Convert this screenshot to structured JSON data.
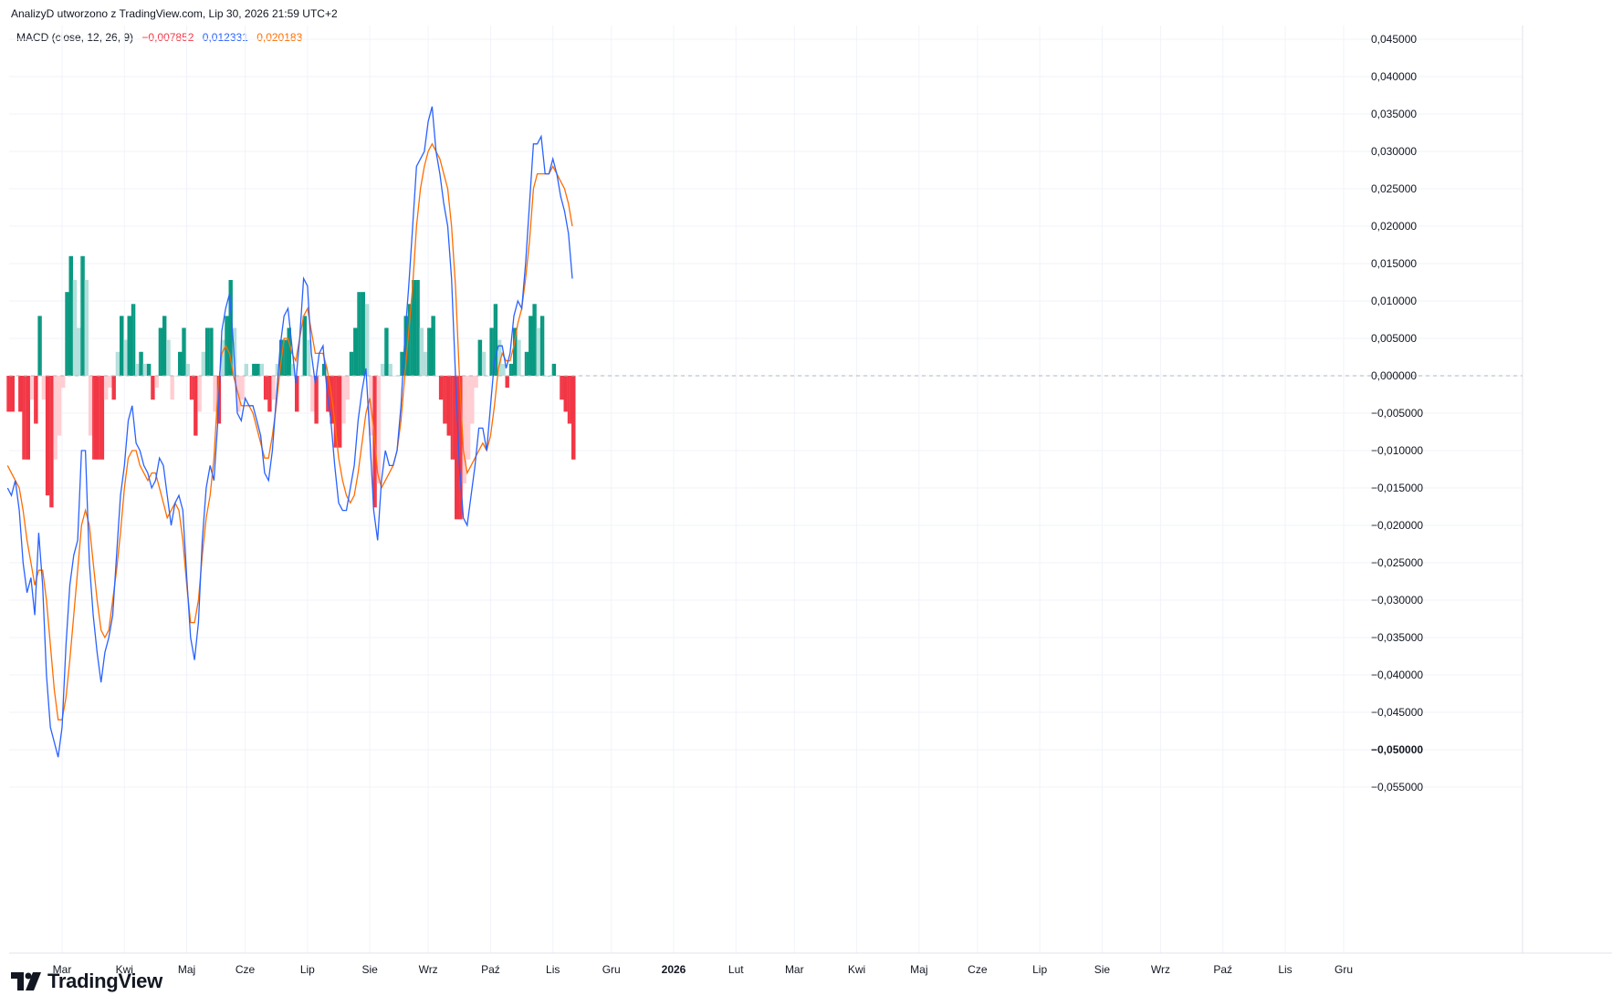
{
  "header": {
    "attribution": "AnalizyD utworzono z TradingView.com, Lip 30, 2026 21:59 UTC+2"
  },
  "legend": {
    "name": "MACD (close, 12, 26, 9)",
    "hist_value": "−0,007852",
    "macd_value": "0,012331",
    "signal_value": "0,020183"
  },
  "brand": {
    "logo_text": "TradingView"
  },
  "colors": {
    "macd": "#2962ff",
    "signal": "#ff6d00",
    "hist_up_strong": "#089981",
    "hist_up_weak": "#b2dfdb",
    "hist_down_strong": "#f23645",
    "hist_down_weak": "#ffcdd2",
    "grid": "#f0f3fa"
  },
  "chart_data": {
    "type": "line",
    "title": "",
    "xlabel": "",
    "ylabel": "",
    "ylim": [
      -0.06,
      0.048
    ],
    "grid": true,
    "legend_position": "top-left",
    "y_ticks": [
      "0,045000",
      "0,040000",
      "0,035000",
      "0,030000",
      "0,025000",
      "0,020000",
      "0,015000",
      "0,010000",
      "0,005000",
      "0,000000",
      "−0,005000",
      "−0,010000",
      "−0,015000",
      "−0,020000",
      "−0,025000",
      "−0,030000",
      "−0,035000",
      "−0,040000",
      "−0,045000",
      "−0,050000",
      "−0,055000"
    ],
    "y_tick_values": [
      0.045,
      0.04,
      0.035,
      0.03,
      0.025,
      0.02,
      0.015,
      0.01,
      0.005,
      0,
      -0.005,
      -0.01,
      -0.015,
      -0.02,
      -0.025,
      -0.03,
      -0.035,
      -0.04,
      -0.045,
      -0.05,
      -0.055
    ],
    "x_ticks": [
      "Mar",
      "Kwi",
      "Maj",
      "Cze",
      "Lip",
      "Sie",
      "Wrz",
      "Paź",
      "Lis",
      "Gru",
      "2026",
      "Lut",
      "Mar",
      "Kwi",
      "Maj",
      "Cze",
      "Lip",
      "Sie",
      "Wrz",
      "Paź",
      "Lis",
      "Gru"
    ],
    "x_tick_index": [
      14,
      30,
      46,
      61,
      77,
      93,
      108,
      124,
      140,
      155,
      171,
      187,
      202,
      218,
      234,
      249,
      265,
      281,
      296,
      312,
      328,
      343
    ],
    "series": [
      {
        "name": "MACD",
        "color": "#2962ff",
        "values": [
          -0.015,
          -0.016,
          -0.014,
          -0.018,
          -0.025,
          -0.029,
          -0.027,
          -0.032,
          -0.021,
          -0.028,
          -0.04,
          -0.047,
          -0.049,
          -0.051,
          -0.047,
          -0.036,
          -0.028,
          -0.024,
          -0.022,
          -0.01,
          -0.01,
          -0.025,
          -0.032,
          -0.037,
          -0.041,
          -0.037,
          -0.035,
          -0.032,
          -0.024,
          -0.016,
          -0.012,
          -0.006,
          -0.004,
          -0.009,
          -0.01,
          -0.012,
          -0.013,
          -0.015,
          -0.014,
          -0.011,
          -0.012,
          -0.016,
          -0.02,
          -0.017,
          -0.016,
          -0.018,
          -0.027,
          -0.035,
          -0.038,
          -0.033,
          -0.022,
          -0.015,
          -0.012,
          -0.014,
          -0.006,
          0.006,
          0.009,
          0.011,
          0.004,
          -0.005,
          -0.006,
          -0.003,
          -0.004,
          -0.004,
          -0.006,
          -0.008,
          -0.013,
          -0.014,
          -0.01,
          -0.003,
          0.004,
          0.008,
          0.009,
          0.004,
          -0.001,
          0.005,
          0.013,
          0.012,
          0.003,
          -0.001,
          0.003,
          0.004,
          -0.002,
          -0.006,
          -0.012,
          -0.017,
          -0.018,
          -0.018,
          -0.015,
          -0.012,
          -0.006,
          -0.002,
          0.001,
          -0.008,
          -0.018,
          -0.022,
          -0.014,
          -0.01,
          -0.012,
          -0.012,
          -0.01,
          -0.004,
          0.005,
          0.012,
          0.02,
          0.028,
          0.029,
          0.03,
          0.034,
          0.036,
          0.03,
          0.027,
          0.023,
          0.02,
          0.013,
          0.0,
          -0.012,
          -0.019,
          -0.02,
          -0.016,
          -0.012,
          -0.007,
          -0.007,
          -0.01,
          -0.004,
          0.002,
          0.004,
          0.004,
          0.001,
          0.003,
          0.008,
          0.01,
          0.009,
          0.015,
          0.023,
          0.031,
          0.031,
          0.032,
          0.027,
          0.027,
          0.029,
          0.027,
          0.024,
          0.022,
          0.019,
          0.013
        ],
        "note_values_tail_last": 0.012331
      },
      {
        "name": "Signal",
        "color": "#ff6d00",
        "values": [
          -0.012,
          -0.013,
          -0.014,
          -0.015,
          -0.018,
          -0.022,
          -0.025,
          -0.028,
          -0.026,
          -0.026,
          -0.03,
          -0.036,
          -0.042,
          -0.046,
          -0.046,
          -0.043,
          -0.038,
          -0.032,
          -0.026,
          -0.02,
          -0.018,
          -0.02,
          -0.025,
          -0.03,
          -0.034,
          -0.035,
          -0.034,
          -0.03,
          -0.026,
          -0.021,
          -0.015,
          -0.011,
          -0.01,
          -0.01,
          -0.012,
          -0.013,
          -0.014,
          -0.013,
          -0.013,
          -0.015,
          -0.017,
          -0.019,
          -0.018,
          -0.017,
          -0.018,
          -0.022,
          -0.028,
          -0.033,
          -0.033,
          -0.03,
          -0.024,
          -0.019,
          -0.016,
          -0.011,
          -0.002,
          0.003,
          0.004,
          0.003,
          0.0,
          -0.002,
          -0.004,
          -0.004,
          -0.004,
          -0.005,
          -0.007,
          -0.009,
          -0.011,
          -0.011,
          -0.008,
          -0.004,
          0.001,
          0.005,
          0.005,
          0.003,
          0.002,
          0.005,
          0.008,
          0.009,
          0.006,
          0.003,
          0.003,
          0.003,
          0.001,
          -0.002,
          -0.006,
          -0.011,
          -0.014,
          -0.016,
          -0.017,
          -0.016,
          -0.013,
          -0.009,
          -0.005,
          -0.003,
          -0.007,
          -0.013,
          -0.015,
          -0.014,
          -0.013,
          -0.012,
          -0.01,
          -0.006,
          0.0,
          0.006,
          0.012,
          0.02,
          0.025,
          0.028,
          0.03,
          0.031,
          0.03,
          0.029,
          0.027,
          0.025,
          0.02,
          0.012,
          0.0,
          -0.01,
          -0.013,
          -0.012,
          -0.011,
          -0.01,
          -0.009,
          -0.01,
          -0.008,
          -0.004,
          0.001,
          0.003,
          0.002,
          0.002,
          0.004,
          0.007,
          0.009,
          0.013,
          0.018,
          0.025,
          0.027,
          0.027,
          0.027,
          0.027,
          0.028,
          0.027,
          0.026,
          0.025,
          0.023,
          0.02
        ]
      }
    ]
  }
}
